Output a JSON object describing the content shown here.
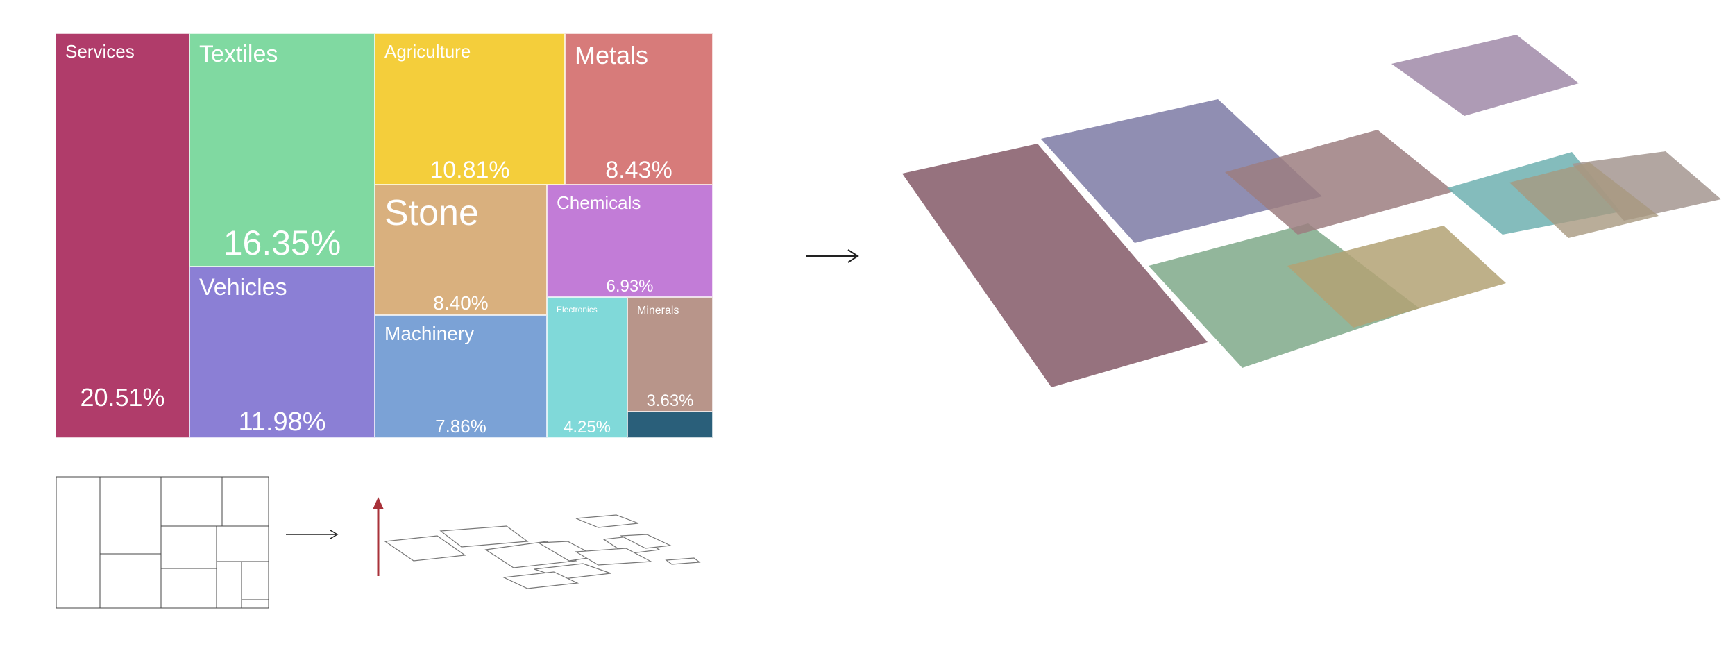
{
  "chart_data": {
    "type": "treemap",
    "title": "",
    "items": [
      {
        "name": "Services",
        "pct_label": "20.51%",
        "value": 20.51,
        "color": "#b03c6a"
      },
      {
        "name": "Textiles",
        "pct_label": "16.35%",
        "value": 16.35,
        "color": "#80d9a1"
      },
      {
        "name": "Vehicles",
        "pct_label": "11.98%",
        "value": 11.98,
        "color": "#8b7fd5"
      },
      {
        "name": "Agriculture",
        "pct_label": "10.81%",
        "value": 10.81,
        "color": "#f4ce3b"
      },
      {
        "name": "Metals",
        "pct_label": "8.43%",
        "value": 8.43,
        "color": "#d77b7a"
      },
      {
        "name": "Stone",
        "pct_label": "8.40%",
        "value": 8.4,
        "color": "#d9b07e"
      },
      {
        "name": "Machinery",
        "pct_label": "7.86%",
        "value": 7.86,
        "color": "#7ba2d6"
      },
      {
        "name": "Chemicals",
        "pct_label": "6.93%",
        "value": 6.93,
        "color": "#c27cd7"
      },
      {
        "name": "Electronics",
        "pct_label": "4.25%",
        "value": 4.25,
        "color": "#80d9d9"
      },
      {
        "name": "Minerals",
        "pct_label": "3.63%",
        "value": 3.63,
        "color": "#b8958a"
      },
      {
        "name": "",
        "pct_label": "",
        "value": 1.85,
        "color": "#2a5f7a"
      }
    ]
  },
  "iso_colors": [
    "#8b6370",
    "#7fa98a",
    "#b3a274",
    "#7d7aa5",
    "#9c7e80",
    "#a08aa8",
    "#6fb0b0",
    "#a49790",
    "#a89980",
    "#7a8fa0"
  ],
  "sketch_arrow_color": "#a8323a",
  "arrow_color": "#222222"
}
